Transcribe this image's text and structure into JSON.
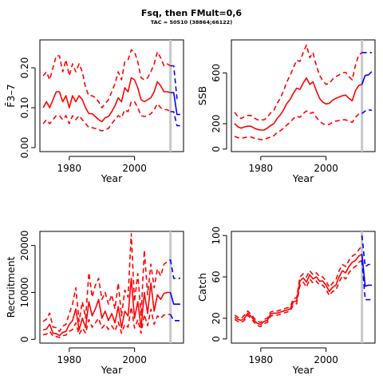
{
  "title": "Fsq, then FMult=0,6",
  "subtitle": "TAC = 50510 (38864;66122)",
  "colors": {
    "history": "#ff0000",
    "projection": "#0000ff",
    "marker": "#c8c8c8",
    "axis": "#000000"
  },
  "chart_data": [
    {
      "type": "line",
      "panel": "top-left",
      "xlabel": "Year",
      "ylabel": "F̄3–7",
      "xlim": [
        1971,
        2015
      ],
      "ylim": [
        -0.01,
        0.27
      ],
      "xticks": [
        1980,
        2000
      ],
      "yticks": [
        0.0,
        0.1,
        0.2
      ],
      "ytick_labels": [
        "0.00",
        "0.10",
        "0.20"
      ],
      "marker_year": 2011,
      "history": {
        "x": [
          1972,
          1973,
          1974,
          1975,
          1976,
          1977,
          1978,
          1979,
          1980,
          1981,
          1982,
          1983,
          1984,
          1985,
          1986,
          1987,
          1988,
          1989,
          1990,
          1991,
          1992,
          1993,
          1994,
          1995,
          1996,
          1997,
          1998,
          1999,
          2000,
          2001,
          2002,
          2003,
          2004,
          2005,
          2006,
          2007,
          2008,
          2009,
          2010,
          2011
        ],
        "estimate": [
          0.1,
          0.115,
          0.1,
          0.12,
          0.14,
          0.14,
          0.115,
          0.13,
          0.1,
          0.13,
          0.115,
          0.13,
          0.12,
          0.1,
          0.085,
          0.085,
          0.078,
          0.07,
          0.065,
          0.075,
          0.078,
          0.09,
          0.105,
          0.125,
          0.115,
          0.15,
          0.14,
          0.175,
          0.17,
          0.15,
          0.12,
          0.115,
          0.12,
          0.125,
          0.14,
          0.165,
          0.155,
          0.14,
          0.14,
          0.138
        ],
        "upper": [
          0.18,
          0.19,
          0.17,
          0.2,
          0.23,
          0.23,
          0.19,
          0.22,
          0.18,
          0.21,
          0.19,
          0.21,
          0.19,
          0.15,
          0.13,
          0.13,
          0.125,
          0.115,
          0.1,
          0.11,
          0.12,
          0.14,
          0.16,
          0.19,
          0.17,
          0.215,
          0.22,
          0.245,
          0.24,
          0.215,
          0.175,
          0.17,
          0.175,
          0.19,
          0.21,
          0.24,
          0.225,
          0.205,
          0.21,
          0.205
        ],
        "lower": [
          0.06,
          0.07,
          0.06,
          0.07,
          0.08,
          0.08,
          0.07,
          0.08,
          0.06,
          0.08,
          0.07,
          0.08,
          0.07,
          0.06,
          0.05,
          0.05,
          0.048,
          0.045,
          0.042,
          0.045,
          0.048,
          0.06,
          0.07,
          0.08,
          0.075,
          0.095,
          0.09,
          0.115,
          0.115,
          0.1,
          0.08,
          0.078,
          0.08,
          0.085,
          0.095,
          0.11,
          0.1,
          0.095,
          0.095,
          0.09
        ]
      },
      "projection": {
        "x": [
          2011,
          2012,
          2013,
          2014
        ],
        "estimate": [
          0.138,
          0.138,
          0.083,
          0.083
        ],
        "upper": [
          0.205,
          0.205,
          0.123,
          0.123
        ],
        "lower": [
          0.09,
          0.09,
          0.055,
          0.055
        ]
      }
    },
    {
      "type": "line",
      "panel": "top-right",
      "xlabel": "Year",
      "ylabel": "SSB",
      "xlim": [
        1971,
        2015
      ],
      "ylim": [
        -20,
        860
      ],
      "xticks": [
        1980,
        2000
      ],
      "yticks": [
        0,
        200,
        600
      ],
      "ytick_labels": [
        "0",
        "200",
        "600"
      ],
      "marker_year": 2011,
      "history": {
        "x": [
          1972,
          1973,
          1974,
          1975,
          1976,
          1977,
          1978,
          1979,
          1980,
          1981,
          1982,
          1983,
          1984,
          1985,
          1986,
          1987,
          1988,
          1989,
          1990,
          1991,
          1992,
          1993,
          1994,
          1995,
          1996,
          1997,
          1998,
          1999,
          2000,
          2001,
          2002,
          2003,
          2004,
          2005,
          2006,
          2007,
          2008,
          2009,
          2010,
          2011
        ],
        "estimate": [
          200,
          175,
          165,
          175,
          180,
          180,
          165,
          155,
          150,
          150,
          165,
          185,
          200,
          240,
          270,
          310,
          360,
          390,
          440,
          480,
          470,
          520,
          560,
          510,
          530,
          460,
          400,
          370,
          355,
          360,
          385,
          400,
          410,
          420,
          425,
          400,
          380,
          460,
          500,
          510
        ],
        "upper": [
          290,
          255,
          240,
          255,
          265,
          265,
          245,
          230,
          230,
          230,
          250,
          285,
          305,
          360,
          400,
          460,
          530,
          580,
          640,
          700,
          690,
          760,
          820,
          720,
          760,
          660,
          580,
          540,
          510,
          515,
          550,
          570,
          585,
          600,
          605,
          570,
          545,
          660,
          740,
          760
        ],
        "lower": [
          100,
          90,
          85,
          90,
          95,
          95,
          85,
          80,
          75,
          75,
          85,
          95,
          105,
          130,
          145,
          165,
          190,
          210,
          240,
          260,
          250,
          280,
          300,
          280,
          290,
          250,
          220,
          200,
          190,
          195,
          210,
          220,
          225,
          230,
          230,
          220,
          210,
          250,
          275,
          280
        ]
      },
      "projection": {
        "x": [
          2011,
          2012,
          2013,
          2014
        ],
        "estimate": [
          510,
          580,
          585,
          610
        ],
        "upper": [
          760,
          760,
          760,
          760
        ],
        "lower": [
          280,
          300,
          310,
          305
        ]
      }
    },
    {
      "type": "line",
      "panel": "bottom-left",
      "xlabel": "Year",
      "ylabel": "Recruitment",
      "xlim": [
        1971,
        2015
      ],
      "ylim": [
        -800,
        23000
      ],
      "xticks": [
        1980,
        2000
      ],
      "yticks": [
        0,
        10000,
        20000
      ],
      "ytick_labels": [
        "0",
        "10000",
        "20000"
      ],
      "marker_year": 2011,
      "history": {
        "x": [
          1972,
          1973,
          1974,
          1975,
          1976,
          1977,
          1978,
          1979,
          1980,
          1981,
          1982,
          1983,
          1984,
          1985,
          1986,
          1987,
          1988,
          1989,
          1990,
          1991,
          1992,
          1993,
          1994,
          1995,
          1996,
          1997,
          1998,
          1999,
          2000,
          2001,
          2002,
          2003,
          2004,
          2005,
          2006,
          2007,
          2008,
          2009,
          2010,
          2011
        ],
        "estimate": [
          2000,
          2200,
          3200,
          1300,
          1200,
          800,
          1500,
          1700,
          3200,
          4000,
          6500,
          2000,
          4500,
          2500,
          8000,
          5000,
          6500,
          8500,
          4500,
          6000,
          4000,
          5500,
          3500,
          7000,
          2500,
          6000,
          5000,
          13000,
          4500,
          8000,
          2500,
          10000,
          5500,
          12000,
          6000,
          9500,
          8500,
          9800,
          10000,
          10000
        ],
        "upper": [
          3800,
          4300,
          5600,
          2600,
          2500,
          1700,
          2800,
          3200,
          5500,
          7500,
          11000,
          3800,
          8000,
          4500,
          14200,
          9000,
          11500,
          13000,
          8500,
          10000,
          7500,
          9500,
          6500,
          12000,
          5000,
          10500,
          9000,
          22500,
          8000,
          14000,
          5000,
          19000,
          9500,
          16000,
          11000,
          15000,
          13500,
          16000,
          16500,
          17000
        ],
        "lower": [
          1000,
          1100,
          1700,
          700,
          600,
          400,
          800,
          900,
          1700,
          2100,
          3500,
          1000,
          2400,
          1300,
          4200,
          2600,
          3500,
          4500,
          2400,
          3200,
          2100,
          2900,
          1800,
          3700,
          1300,
          3200,
          2600,
          6900,
          2400,
          4200,
          1300,
          5300,
          2900,
          6400,
          3200,
          5000,
          4500,
          5200,
          5300,
          5300
        ]
      },
      "projection": {
        "x": [
          2011,
          2012,
          2013,
          2014
        ],
        "estimate": [
          10000,
          7500,
          7500,
          7500
        ],
        "upper": [
          17000,
          13000,
          13000,
          13000
        ],
        "lower": [
          5300,
          4000,
          4000,
          4000
        ]
      }
    },
    {
      "type": "line",
      "panel": "bottom-right",
      "xlabel": "Year",
      "ylabel": "Catch",
      "xlim": [
        1971,
        2015
      ],
      "ylim": [
        -4,
        104
      ],
      "xticks": [
        1980,
        2000
      ],
      "yticks": [
        0,
        20,
        60,
        100
      ],
      "ytick_labels": [
        "0",
        "20",
        "60",
        "100"
      ],
      "marker_year": 2011,
      "history": {
        "x": [
          1972,
          1973,
          1974,
          1975,
          1976,
          1977,
          1978,
          1979,
          1980,
          1981,
          1982,
          1983,
          1984,
          1985,
          1986,
          1987,
          1988,
          1989,
          1990,
          1991,
          1992,
          1993,
          1994,
          1995,
          1996,
          1997,
          1998,
          1999,
          2000,
          2001,
          2002,
          2003,
          2004,
          2005,
          2006,
          2007,
          2008,
          2009,
          2010,
          2011
        ],
        "estimate": [
          21,
          19,
          18,
          20,
          25,
          22,
          18,
          15,
          14,
          17,
          18,
          24,
          25,
          25,
          26,
          27,
          28,
          29,
          36,
          37,
          56,
          59,
          55,
          62,
          58,
          60,
          56,
          56,
          52,
          46,
          50,
          52,
          60,
          66,
          64,
          70,
          74,
          76,
          80,
          82
        ],
        "upper": [
          23,
          21,
          20,
          23,
          27,
          24,
          20,
          17,
          16,
          19,
          20,
          26,
          27,
          27,
          28,
          29,
          30,
          31,
          39,
          40,
          60,
          63,
          60,
          66,
          62,
          64,
          60,
          60,
          56,
          50,
          54,
          57,
          66,
          72,
          70,
          76,
          80,
          82,
          86,
          90
        ],
        "lower": [
          19,
          17,
          16,
          18,
          23,
          20,
          16,
          13,
          12,
          15,
          16,
          22,
          23,
          23,
          24,
          25,
          26,
          27,
          33,
          34,
          52,
          55,
          50,
          58,
          54,
          56,
          52,
          52,
          48,
          42,
          46,
          47,
          55,
          61,
          58,
          64,
          68,
          70,
          74,
          76
        ]
      },
      "projection": {
        "x": [
          2011,
          2012,
          2013,
          2014
        ],
        "estimate": [
          82,
          51,
          52,
          52
        ],
        "upper": [
          100,
          70,
          72,
          72
        ],
        "lower": [
          76,
          38,
          38,
          38
        ]
      }
    }
  ]
}
